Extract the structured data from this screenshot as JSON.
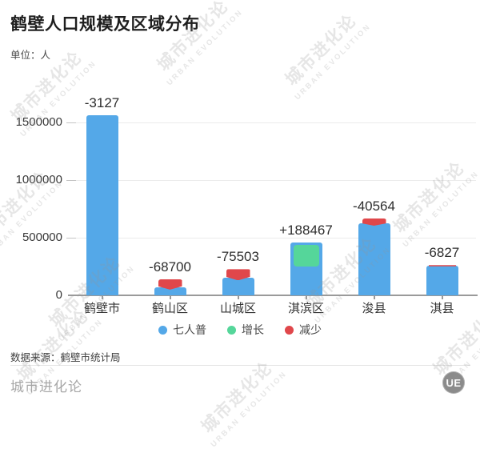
{
  "title": "鹤壁人口规模及区域分布",
  "unit": "单位：人",
  "source": "数据来源：鹤壁市统计局",
  "footer": {
    "brand": "城市进化论",
    "logo_text": "UE"
  },
  "watermark": {
    "line1": "城市进化论",
    "line2": "URBAN EVOLUTION"
  },
  "colors": {
    "census_blue": "#54a8e8",
    "increase_green": "#55d69a",
    "decrease_red": "#e0474b",
    "grid": "#ececec",
    "axis": "#9a9a9a"
  },
  "legend": [
    {
      "label": "七人普",
      "color": "#54a8e8"
    },
    {
      "label": "增长",
      "color": "#55d69a"
    },
    {
      "label": "减少",
      "color": "#e0474b"
    }
  ],
  "chart_data": {
    "type": "bar",
    "title": "鹤壁人口规模及区域分布",
    "unit_label": "单位：人",
    "categories": [
      "鹤壁市",
      "鹤山区",
      "山城区",
      "淇滨区",
      "浚县",
      "淇县"
    ],
    "series": [
      {
        "name": "七人普",
        "color": "#54a8e8",
        "values": [
          1565000,
          70000,
          150000,
          460000,
          625000,
          260000
        ]
      }
    ],
    "changes": {
      "increase_name": "增长",
      "increase_color": "#55d69a",
      "decrease_name": "减少",
      "decrease_color": "#e0474b",
      "values": [
        -3127,
        -68700,
        -75503,
        188467,
        -40564,
        -6827
      ]
    },
    "change_labels": [
      "-3127",
      "-68700",
      "-75503",
      "+188467",
      "-40564",
      "-6827"
    ],
    "yticks": [
      0,
      500000,
      1000000,
      1500000
    ],
    "ylim": [
      0,
      1800000
    ],
    "grid": true,
    "legend_position": "bottom",
    "note": "bar values are estimates read from gridlines; change labels are printed on chart"
  }
}
